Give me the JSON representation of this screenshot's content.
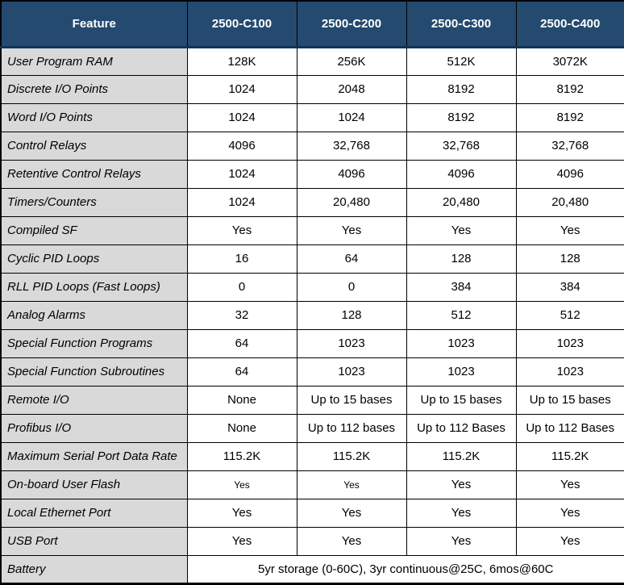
{
  "table": {
    "colors": {
      "header_bg": "#244A70",
      "header_underline": "#14325A",
      "feature_bg": "#D9D9D9",
      "border": "#000000",
      "cell_bg": "#FFFFFF",
      "header_text": "#FFFFFF",
      "text": "#000000"
    },
    "header": {
      "feature_label": "Feature",
      "columns": [
        "2500-C100",
        "2500-C200",
        "2500-C300",
        "2500-C400"
      ]
    },
    "rows": [
      {
        "feature": "User Program RAM",
        "values": [
          "128K",
          "256K",
          "512K",
          "3072K"
        ]
      },
      {
        "feature": "Discrete I/O Points",
        "values": [
          "1024",
          "2048",
          "8192",
          "8192"
        ]
      },
      {
        "feature": "Word I/O Points",
        "values": [
          "1024",
          "1024",
          "8192",
          "8192"
        ]
      },
      {
        "feature": "Control Relays",
        "values": [
          "4096",
          "32,768",
          "32,768",
          "32,768"
        ]
      },
      {
        "feature": "Retentive Control Relays",
        "values": [
          "1024",
          "4096",
          "4096",
          "4096"
        ]
      },
      {
        "feature": "Timers/Counters",
        "values": [
          "1024",
          "20,480",
          "20,480",
          "20,480"
        ]
      },
      {
        "feature": "Compiled SF",
        "values": [
          "Yes",
          "Yes",
          "Yes",
          "Yes"
        ]
      },
      {
        "feature": "Cyclic PID Loops",
        "values": [
          "16",
          "64",
          "128",
          "128"
        ]
      },
      {
        "feature": "RLL PID Loops (Fast Loops)",
        "values": [
          "0",
          "0",
          "384",
          "384"
        ]
      },
      {
        "feature": "Analog Alarms",
        "values": [
          "32",
          "128",
          "512",
          "512"
        ]
      },
      {
        "feature": "Special Function Programs",
        "values": [
          "64",
          "1023",
          "1023",
          "1023"
        ]
      },
      {
        "feature": "Special Function Subroutines",
        "values": [
          "64",
          "1023",
          "1023",
          "1023"
        ]
      },
      {
        "feature": "Remote I/O",
        "values": [
          "None",
          "Up to 15 bases",
          "Up to 15 bases",
          "Up to 15 bases"
        ]
      },
      {
        "feature": "Profibus I/O",
        "values": [
          "None",
          "Up to 112 bases",
          "Up to 112 Bases",
          "Up to 112 Bases"
        ]
      },
      {
        "feature": "Maximum Serial Port Data Rate",
        "values": [
          "115.2K",
          "115.2K",
          "115.2K",
          "115.2K"
        ]
      },
      {
        "feature": "On-board User Flash",
        "values": [
          "Yes",
          "Yes",
          "Yes",
          "Yes"
        ],
        "small_cols": [
          0,
          1
        ]
      },
      {
        "feature": "Local Ethernet Port",
        "values": [
          "Yes",
          "Yes",
          "Yes",
          "Yes"
        ]
      },
      {
        "feature": "USB Port",
        "values": [
          "Yes",
          "Yes",
          "Yes",
          "Yes"
        ]
      },
      {
        "feature": "Battery",
        "merged": true,
        "values": [
          "5yr storage (0-60C), 3yr continuous@25C, 6mos@60C"
        ]
      }
    ]
  }
}
